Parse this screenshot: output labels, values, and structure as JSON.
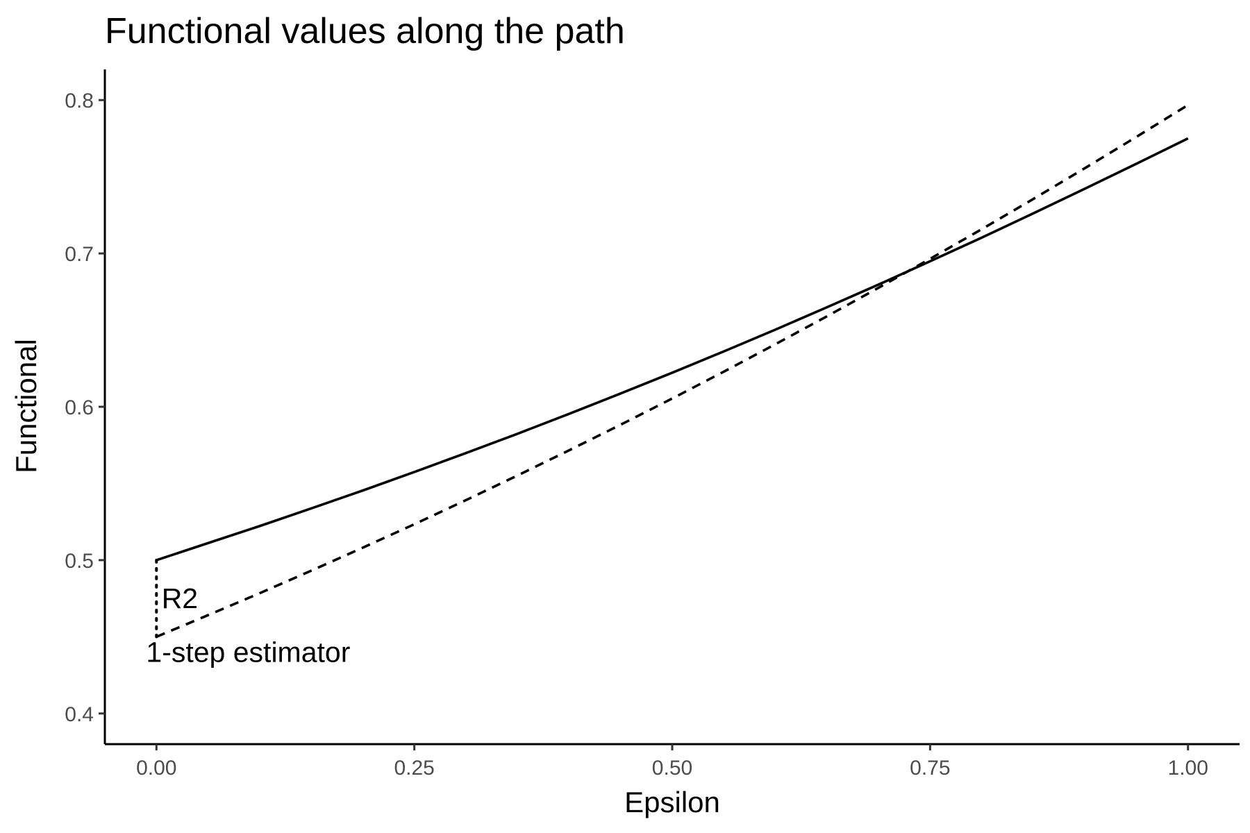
{
  "chart_data": {
    "type": "line",
    "title": "Functional values along the path",
    "xlabel": "Epsilon",
    "ylabel": "Functional",
    "xlim": [
      -0.05,
      1.05
    ],
    "ylim": [
      0.38,
      0.82
    ],
    "x_ticks": [
      0.0,
      0.25,
      0.5,
      0.75,
      1.0
    ],
    "x_tick_labels": [
      "0.00",
      "0.25",
      "0.50",
      "0.75",
      "1.00"
    ],
    "y_ticks": [
      0.4,
      0.5,
      0.6,
      0.7,
      0.8
    ],
    "y_tick_labels": [
      "0.4",
      "0.5",
      "0.6",
      "0.7",
      "0.8"
    ],
    "grid": false,
    "legend": "none",
    "series": [
      {
        "linetype": "solid",
        "x": [
          0.0,
          0.05,
          0.1,
          0.15,
          0.2,
          0.25,
          0.3,
          0.35,
          0.4,
          0.45,
          0.5,
          0.55,
          0.6,
          0.65,
          0.7,
          0.75,
          0.8,
          0.85,
          0.9,
          0.95,
          1.0
        ],
        "values": [
          0.5,
          0.5111,
          0.5222,
          0.5337,
          0.5454,
          0.5575,
          0.5698,
          0.5824,
          0.5954,
          0.6087,
          0.6222,
          0.6361,
          0.6503,
          0.6649,
          0.6797,
          0.6949,
          0.7103,
          0.7261,
          0.7422,
          0.7585,
          0.775
        ]
      },
      {
        "linetype": "dashed",
        "x": [
          0.0,
          0.05,
          0.1,
          0.15,
          0.2,
          0.25,
          0.3,
          0.35,
          0.4,
          0.45,
          0.5,
          0.55,
          0.6,
          0.65,
          0.7,
          0.75,
          0.8,
          0.85,
          0.9,
          0.95,
          1.0
        ],
        "values": [
          0.45,
          0.4641,
          0.4784,
          0.4931,
          0.5081,
          0.5234,
          0.5391,
          0.5552,
          0.5716,
          0.5883,
          0.6054,
          0.6229,
          0.6408,
          0.659,
          0.6776,
          0.6965,
          0.7158,
          0.7355,
          0.7556,
          0.776,
          0.7968
        ]
      }
    ],
    "annotations": [
      {
        "text": "R2",
        "x": 0.005,
        "y": 0.475,
        "segment": {
          "x": 0.0,
          "y_from": 0.45,
          "y_to": 0.5,
          "linetype": "dotted"
        }
      },
      {
        "text": "1-step estimator",
        "x": -0.01,
        "y": 0.44
      }
    ]
  }
}
